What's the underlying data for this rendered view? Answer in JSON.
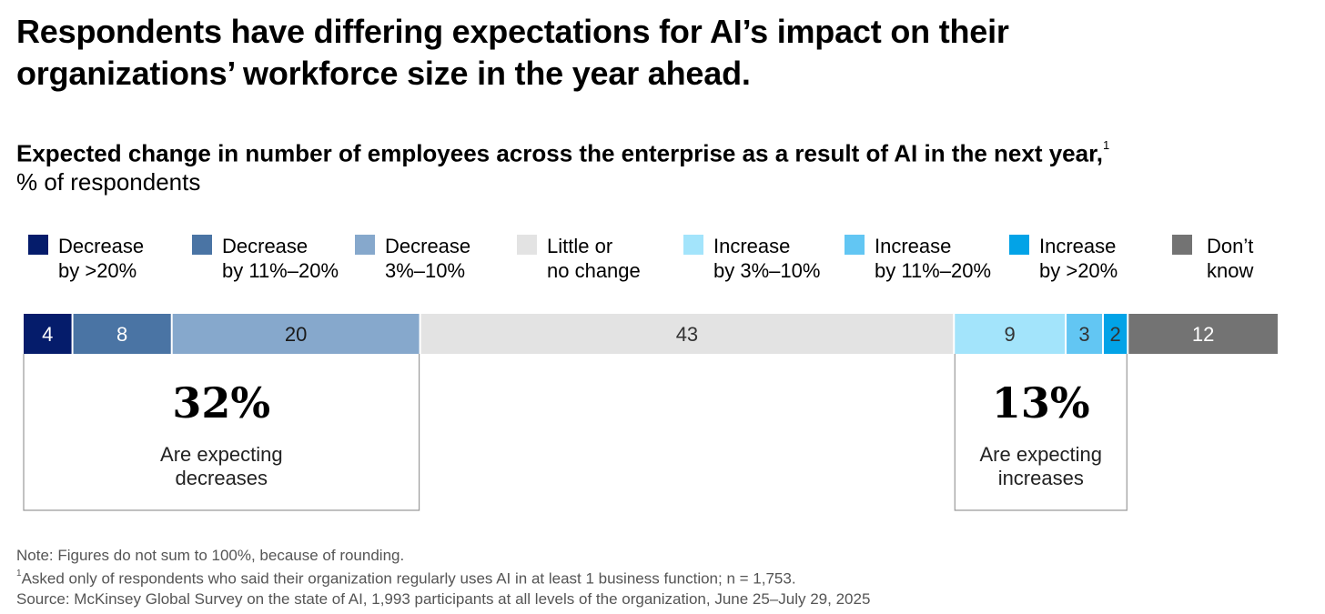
{
  "title": "Respondents have differing expectations for AI’s impact on their organizations’ workforce size in the year ahead.",
  "subtitle": "Expected change in number of employees across the enterprise as a result of AI in the next year,",
  "subtitle_footnote": "1",
  "units": "% of respondents",
  "chart_data": {
    "type": "bar",
    "orientation": "horizontal-stacked",
    "title": "Expected change in number of employees across the enterprise as a result of AI in the next year",
    "ylabel": "% of respondents",
    "categories": [
      "Decrease by >20%",
      "Decrease by 11%–20%",
      "Decrease 3%–10%",
      "Little or no change",
      "Increase by 3%–10%",
      "Increase by 11%–20%",
      "Increase by >20%",
      "Don’t know"
    ],
    "legend": [
      {
        "line1": "Decrease",
        "line2": "by >20%",
        "color": "#051c6b"
      },
      {
        "line1": "Decrease",
        "line2": "by 11%–20%",
        "color": "#4a74a4"
      },
      {
        "line1": "Decrease",
        "line2": "3%–10%",
        "color": "#86a8cc"
      },
      {
        "line1": "Little or",
        "line2": "no change",
        "color": "#e3e3e3"
      },
      {
        "line1": "Increase",
        "line2": "by 3%–10%",
        "color": "#a3e4fb"
      },
      {
        "line1": "Increase",
        "line2": "by 11%–20%",
        "color": "#62c6f3"
      },
      {
        "line1": "Increase",
        "line2": "by >20%",
        "color": "#02a3e7"
      },
      {
        "line1": "Don’t",
        "line2": "know",
        "color": "#737373"
      }
    ],
    "values": [
      4,
      8,
      20,
      43,
      9,
      3,
      2,
      12
    ],
    "label_colors": [
      "#ffffff",
      "#ffffff",
      "#1a1a1a",
      "#333333",
      "#333333",
      "#333333",
      "#333333",
      "#ffffff"
    ],
    "annotations": [
      {
        "value": "32%",
        "line1": "Are expecting",
        "line2": "decreases",
        "segments": [
          0,
          2
        ]
      },
      {
        "value": "13%",
        "line1": "Are expecting",
        "line2": "increases",
        "segments": [
          4,
          6
        ]
      }
    ]
  },
  "notes": {
    "note": "Note: Figures do not sum to 100%, because of rounding.",
    "footnote_marker": "1",
    "footnote": "Asked only of respondents who said their organization regularly uses AI in at least 1 business function; n = 1,753.",
    "source": " Source: McKinsey Global Survey on the state of AI, 1,993 participants at all levels of the organization, June 25–July 29, 2025"
  }
}
